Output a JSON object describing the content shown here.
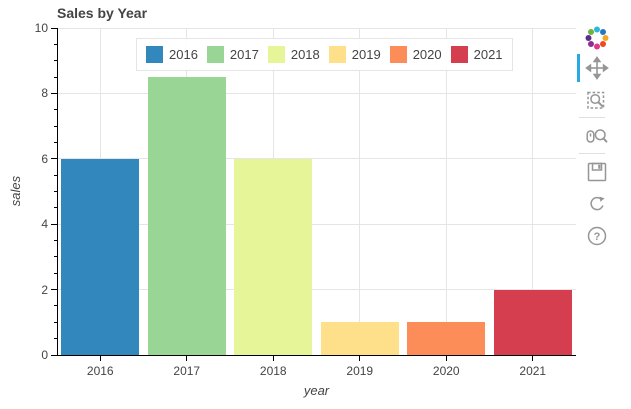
{
  "title": "Sales by Year",
  "chart_data": {
    "type": "bar",
    "title": "Sales by Year",
    "categories": [
      "2016",
      "2017",
      "2018",
      "2019",
      "2020",
      "2021"
    ],
    "values": [
      6,
      8.5,
      6,
      1,
      1,
      2
    ],
    "bar_colors": [
      "#3288bd",
      "#99d594",
      "#e6f598",
      "#fee08b",
      "#fc8d59",
      "#d53e4f"
    ],
    "xlabel": "year",
    "ylabel": "sales",
    "ylim": [
      0,
      10
    ],
    "yticks": [
      0,
      2,
      4,
      6,
      8,
      10
    ],
    "y_minor_tick_step": 0.5,
    "grid": true,
    "legend_position": "top-inside"
  },
  "legend": {
    "items": [
      {
        "label": "2016",
        "color": "#3288bd"
      },
      {
        "label": "2017",
        "color": "#99d594"
      },
      {
        "label": "2018",
        "color": "#e6f598"
      },
      {
        "label": "2019",
        "color": "#fee08b"
      },
      {
        "label": "2020",
        "color": "#fc8d59"
      },
      {
        "label": "2021",
        "color": "#d53e4f"
      }
    ]
  },
  "toolbar": {
    "logo": "bokeh-logo",
    "active_indicator_color": "#26aae1",
    "tools": [
      {
        "name": "pan",
        "icon": "move-arrows-icon",
        "active": true
      },
      {
        "name": "box-zoom",
        "icon": "magnifier-dashed-box-icon",
        "active": false
      },
      {
        "name": "wheel-zoom",
        "icon": "mouse-wheel-magnifier-icon",
        "active": false
      },
      {
        "name": "save",
        "icon": "floppy-disk-icon",
        "active": false
      },
      {
        "name": "reset",
        "icon": "refresh-circle-icon",
        "active": false
      },
      {
        "name": "help",
        "icon": "question-mark-circle-icon",
        "active": false
      }
    ]
  },
  "colors": {
    "grid": "#e5e5e5",
    "axis": "#000000",
    "text": "#444444",
    "legend_border": "#e5e5e5"
  }
}
